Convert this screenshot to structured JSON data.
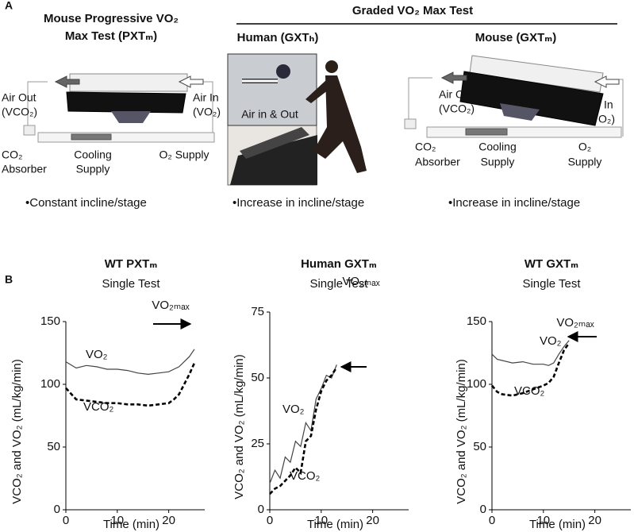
{
  "panel_a": {
    "label": "A",
    "left": {
      "title": [
        "Mouse Progressive VO₂",
        "Max Test (PXTₘ)"
      ],
      "air_out": [
        "Air Out",
        "(VCO₂)"
      ],
      "air_in": [
        "Air In",
        "(VO₂)"
      ],
      "absorber": [
        "CO₂",
        "Absorber"
      ],
      "cooling": [
        "Cooling",
        "Supply"
      ],
      "supply": [
        "O₂ Supply"
      ],
      "note": "•Constant incline/stage"
    },
    "graded_title": "Graded VO₂ Max Test",
    "human": {
      "title": "Human (GXTₕ)",
      "photo_label": "Air in & Out",
      "note": "•Increase in incline/stage"
    },
    "right": {
      "title": "Mouse  (GXTₘ)",
      "air_out": [
        "Air Out",
        "(VCO₂)"
      ],
      "air_in": [
        "Air In",
        "(VO₂)"
      ],
      "absorber": [
        "CO₂",
        "Absorber"
      ],
      "cooling": [
        "Cooling",
        "Supply"
      ],
      "supply": [
        "O₂",
        "Supply"
      ],
      "note": "•Increase in incline/stage"
    }
  },
  "panel_b_label": "B",
  "chart_data": [
    {
      "type": "line",
      "title": "WT PXTₘ",
      "subtitle": "Single Test",
      "x_label": "Time (min)",
      "y_label": "VCO₂ and VO₂ (mL/kg/min)",
      "xlim": [
        0,
        27
      ],
      "xticks": [
        0,
        10,
        20
      ],
      "ylim": [
        0,
        150
      ],
      "yticks": [
        0,
        50,
        100,
        150
      ],
      "x": [
        0,
        2,
        4,
        6,
        8,
        10,
        12,
        14,
        16,
        18,
        20,
        21,
        22,
        23,
        24,
        25
      ],
      "series": [
        {
          "name": "VO₂",
          "color": "#444444",
          "dashed": false,
          "values": [
            118,
            113,
            115,
            114,
            112,
            112,
            111,
            109,
            108,
            109,
            110,
            112,
            114,
            118,
            122,
            128
          ]
        },
        {
          "name": "VCO₂",
          "color": "#000000",
          "dashed": true,
          "values": [
            97,
            88,
            87,
            86,
            85,
            85,
            84,
            84,
            83,
            84,
            85,
            88,
            92,
            100,
            108,
            117
          ]
        }
      ],
      "annotation": "VO₂ₘₐₓ"
    },
    {
      "type": "line",
      "title": "Human GXTₘ",
      "subtitle": "Single Test",
      "x_label": "Time (min)",
      "y_label": "VCO₂ and VO₂ (mL/kg/min)",
      "xlim": [
        0,
        27
      ],
      "xticks": [
        0,
        10,
        20
      ],
      "ylim": [
        0,
        75
      ],
      "yticks": [
        0,
        25,
        50,
        75
      ],
      "x": [
        0,
        1,
        2,
        3,
        4,
        5,
        6,
        7,
        8,
        9,
        10,
        11,
        12,
        13
      ],
      "series": [
        {
          "name": "VO₂",
          "color": "#444444",
          "dashed": false,
          "values": [
            10,
            15,
            12,
            20,
            18,
            26,
            24,
            33,
            30,
            42,
            46,
            51,
            50,
            55
          ]
        },
        {
          "name": "VCO₂",
          "color": "#000000",
          "dashed": true,
          "values": [
            6,
            8,
            9,
            11,
            13,
            16,
            14,
            26,
            28,
            38,
            45,
            49,
            51,
            54
          ]
        }
      ],
      "annotation": "VO₂ₘₐₓ"
    },
    {
      "type": "line",
      "title": "WT GXTₘ",
      "subtitle": "Single Test",
      "x_label": "Time (min)",
      "y_label": "VCO₂ and VO₂ (mL/kg/min)",
      "xlim": [
        0,
        27
      ],
      "xticks": [
        0,
        10,
        20
      ],
      "ylim": [
        0,
        150
      ],
      "yticks": [
        0,
        50,
        100,
        150
      ],
      "x": [
        0,
        1,
        2,
        4,
        6,
        8,
        10,
        11,
        12,
        13,
        14,
        15
      ],
      "series": [
        {
          "name": "VO₂",
          "color": "#444444",
          "dashed": false,
          "values": [
            124,
            120,
            119,
            117,
            118,
            116,
            116,
            115,
            117,
            124,
            130,
            135
          ]
        },
        {
          "name": "VCO₂",
          "color": "#000000",
          "dashed": true,
          "values": [
            99,
            94,
            92,
            91,
            93,
            96,
            99,
            101,
            106,
            117,
            127,
            133
          ]
        }
      ],
      "annotation": "VO₂ₘₐₓ"
    }
  ]
}
